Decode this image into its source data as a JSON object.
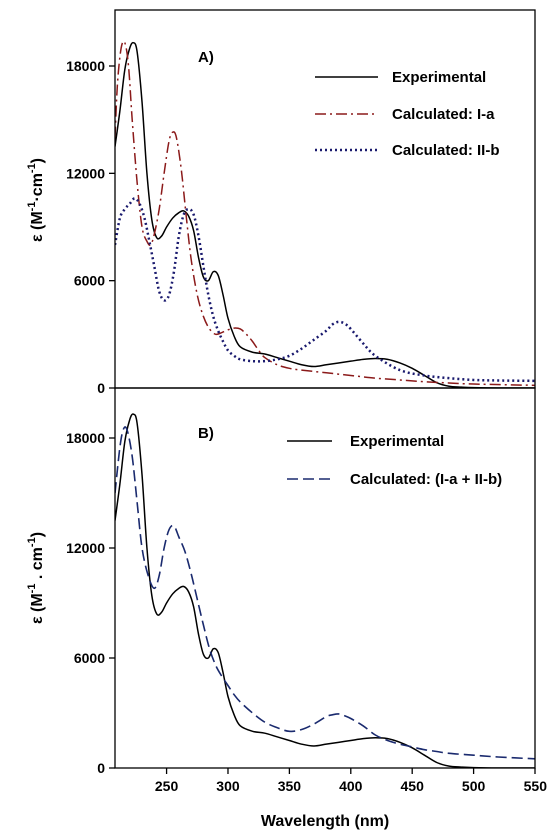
{
  "chart_data": [
    {
      "type": "line",
      "panel_label": "A)",
      "title": "",
      "xlabel": "",
      "ylabel_main": "ε (M",
      "ylabel_sup1": "-1",
      "ylabel_mid": "·cm",
      "ylabel_sup2": "-1",
      "ylabel_end": ")",
      "xlim": [
        208,
        550
      ],
      "ylim": [
        0,
        20000
      ],
      "yticks": [
        0,
        6000,
        12000,
        18000
      ],
      "xticks": [],
      "legend_position": "top-right",
      "series": [
        {
          "name": "Experimental",
          "color": "#000000",
          "dash": "solid",
          "x": [
            208,
            212,
            216,
            220,
            223,
            226,
            230,
            234,
            238,
            242,
            246,
            250,
            255,
            260,
            264,
            268,
            272,
            276,
            280,
            284,
            288,
            292,
            296,
            300,
            305,
            310,
            320,
            330,
            340,
            350,
            360,
            370,
            380,
            390,
            400,
            410,
            420,
            430,
            440,
            450,
            460,
            470,
            480,
            490,
            500,
            520,
            550
          ],
          "y": [
            13500,
            15500,
            17800,
            19000,
            19300,
            18800,
            16000,
            12000,
            9400,
            8400,
            8500,
            9000,
            9500,
            9800,
            9900,
            9600,
            8800,
            7300,
            6200,
            6000,
            6500,
            6300,
            5200,
            3900,
            2900,
            2300,
            2000,
            1900,
            1700,
            1500,
            1300,
            1200,
            1300,
            1400,
            1500,
            1600,
            1650,
            1600,
            1400,
            1100,
            700,
            300,
            100,
            50,
            20,
            0,
            0
          ]
        },
        {
          "name": "Calculated: I-a",
          "color": "#8b1a1a",
          "dash": "dashdot",
          "x": [
            208,
            210,
            213,
            216,
            219,
            222,
            226,
            230,
            234,
            237,
            240,
            244,
            248,
            252,
            255,
            258,
            262,
            266,
            270,
            275,
            280,
            285,
            290,
            295,
            300,
            305,
            310,
            315,
            320,
            325,
            330,
            340,
            350,
            360,
            380,
            400,
            420,
            440,
            460,
            480,
            500,
            550
          ],
          "y": [
            14000,
            17000,
            19000,
            19300,
            18000,
            15000,
            11500,
            9000,
            8200,
            8000,
            8600,
            10000,
            12000,
            13800,
            14300,
            14000,
            12200,
            9600,
            7200,
            5200,
            4000,
            3300,
            3000,
            3100,
            3250,
            3350,
            3300,
            3000,
            2600,
            2100,
            1700,
            1300,
            1100,
            1000,
            850,
            700,
            550,
            450,
            350,
            280,
            220,
            150
          ]
        },
        {
          "name": "Calculated: II-b",
          "color": "#1a1a6e",
          "dash": "dotted",
          "x": [
            208,
            212,
            216,
            220,
            224,
            228,
            232,
            236,
            240,
            244,
            248,
            252,
            256,
            260,
            264,
            268,
            272,
            276,
            280,
            284,
            288,
            292,
            296,
            300,
            305,
            310,
            320,
            330,
            340,
            350,
            360,
            370,
            380,
            385,
            390,
            395,
            400,
            410,
            420,
            440,
            460,
            480,
            500,
            520,
            550
          ],
          "y": [
            8000,
            9500,
            10000,
            10300,
            10600,
            10300,
            9500,
            8200,
            6800,
            5400,
            4900,
            5200,
            6500,
            8500,
            9700,
            10000,
            9700,
            8500,
            6800,
            5200,
            4000,
            3200,
            2600,
            2100,
            1800,
            1600,
            1500,
            1500,
            1600,
            1800,
            2200,
            2700,
            3200,
            3550,
            3700,
            3600,
            3300,
            2500,
            1800,
            1000,
            700,
            550,
            450,
            420,
            400
          ]
        }
      ]
    },
    {
      "type": "line",
      "panel_label": "B)",
      "title": "",
      "xlabel": "Wavelength (nm)",
      "ylabel_main": "ε (M",
      "ylabel_sup1": "-1",
      "ylabel_mid": " . cm",
      "ylabel_sup2": "-1",
      "ylabel_end": ")",
      "xlim": [
        208,
        550
      ],
      "ylim": [
        0,
        20000
      ],
      "yticks": [
        0,
        6000,
        12000,
        18000
      ],
      "xticks": [
        250,
        300,
        350,
        400,
        450,
        500,
        550
      ],
      "legend_position": "top-right",
      "series": [
        {
          "name": "Experimental",
          "color": "#000000",
          "dash": "solid",
          "x": [
            208,
            212,
            216,
            220,
            223,
            226,
            230,
            234,
            238,
            242,
            246,
            250,
            255,
            260,
            264,
            268,
            272,
            276,
            280,
            284,
            288,
            292,
            296,
            300,
            305,
            310,
            320,
            330,
            340,
            350,
            360,
            370,
            380,
            390,
            400,
            410,
            420,
            430,
            440,
            450,
            460,
            470,
            480,
            490,
            500,
            520,
            550
          ],
          "y": [
            13500,
            15500,
            17800,
            19000,
            19300,
            18800,
            16000,
            12000,
            9400,
            8400,
            8500,
            9000,
            9500,
            9800,
            9900,
            9600,
            8800,
            7300,
            6200,
            6000,
            6500,
            6300,
            5200,
            3900,
            2900,
            2300,
            2000,
            1900,
            1700,
            1500,
            1300,
            1200,
            1300,
            1400,
            1500,
            1600,
            1650,
            1600,
            1400,
            1100,
            700,
            300,
            100,
            50,
            20,
            0,
            0
          ]
        },
        {
          "name": "Calculated: (I-a + II-b)",
          "color": "#1a2a6e",
          "dash": "dashed",
          "x": [
            208,
            212,
            215,
            218,
            222,
            226,
            230,
            235,
            240,
            244,
            248,
            252,
            256,
            260,
            265,
            270,
            275,
            280,
            285,
            290,
            295,
            300,
            305,
            310,
            320,
            330,
            340,
            350,
            360,
            370,
            380,
            385,
            390,
            395,
            400,
            410,
            420,
            430,
            440,
            450,
            460,
            470,
            480,
            500,
            520,
            550
          ],
          "y": [
            15000,
            17500,
            18500,
            18400,
            17000,
            14500,
            12000,
            10500,
            9800,
            10500,
            12000,
            13000,
            13200,
            12600,
            11800,
            10600,
            9200,
            7800,
            6500,
            5600,
            5000,
            4500,
            4000,
            3600,
            3000,
            2500,
            2200,
            2000,
            2100,
            2400,
            2800,
            2900,
            2950,
            2850,
            2700,
            2300,
            1800,
            1500,
            1300,
            1150,
            1000,
            900,
            800,
            700,
            600,
            500
          ]
        }
      ]
    }
  ]
}
